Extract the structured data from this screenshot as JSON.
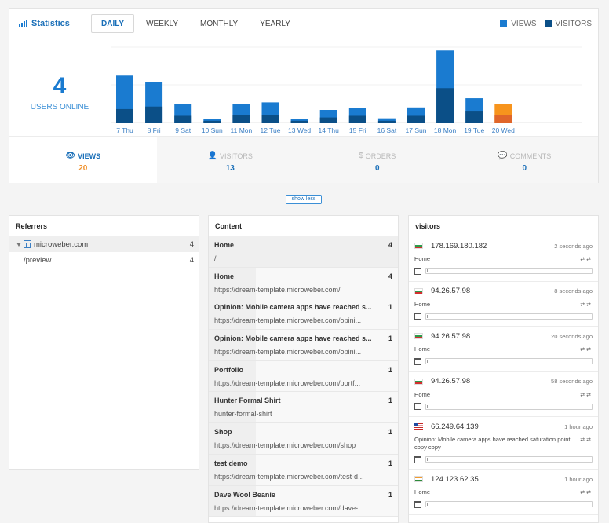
{
  "header": {
    "title": "Statistics",
    "tabs": [
      {
        "label": "DAILY",
        "active": true
      },
      {
        "label": "WEEKLY",
        "active": false
      },
      {
        "label": "MONTHLY",
        "active": false
      },
      {
        "label": "YEARLY",
        "active": false
      }
    ],
    "legend": [
      {
        "label": "VIEWS",
        "color": "#1a7bd0"
      },
      {
        "label": "VISITORS",
        "color": "#0b4f87"
      }
    ]
  },
  "online": {
    "count": "4",
    "label": "USERS ONLINE"
  },
  "chart_data": {
    "type": "bar",
    "categories": [
      "7 Thu",
      "8 Fri",
      "9 Sat",
      "10 Sun",
      "11 Mon",
      "12 Tue",
      "13 Wed",
      "14 Thu",
      "15 Fri",
      "16 Sat",
      "17 Sun",
      "18 Mon",
      "19 Tue",
      "20 Wed"
    ],
    "series": [
      {
        "name": "VIEWS",
        "color": "#1a7bd0",
        "values": [
          56,
          48,
          22,
          4,
          22,
          24,
          4,
          15,
          17,
          5,
          18,
          86,
          29,
          22
        ]
      },
      {
        "name": "VISITORS",
        "color": "#0b4f87",
        "values": [
          16,
          19,
          8,
          2,
          9,
          9,
          2,
          6,
          8,
          2,
          8,
          41,
          14,
          9
        ]
      }
    ],
    "highlight": {
      "category": "20 Wed",
      "views_color": "#f7941d",
      "visitors_color": "#e0662a"
    },
    "ylim": [
      0,
      90
    ],
    "grid": true
  },
  "metrics": [
    {
      "label": "VIEWS",
      "icon": "eye-icon",
      "glyph": "👁",
      "value": "20",
      "active": true
    },
    {
      "label": "VISITORS",
      "icon": "user-icon",
      "glyph": "👤",
      "value": "13",
      "active": false
    },
    {
      "label": "ORDERS",
      "icon": "dollar-icon",
      "glyph": "$",
      "value": "0",
      "active": false
    },
    {
      "label": "COMMENTS",
      "icon": "comment-icon",
      "glyph": "💬",
      "value": "0",
      "active": false
    }
  ],
  "show_less": "show less",
  "referrers": {
    "title": "Referrers",
    "items": [
      {
        "name": "microweber.com",
        "count": "4"
      },
      {
        "name": "/preview",
        "count": "4"
      }
    ]
  },
  "content": {
    "title": "Content",
    "items": [
      {
        "title": "Home",
        "url": "/",
        "count": "4"
      },
      {
        "title": "Home",
        "url": "https://dream-template.microweber.com/",
        "count": "4"
      },
      {
        "title": "Opinion: Mobile camera apps have reached s...",
        "url": "https://dream-template.microweber.com/opini...",
        "count": "1"
      },
      {
        "title": "Opinion: Mobile camera apps have reached s...",
        "url": "https://dream-template.microweber.com/opini...",
        "count": "1"
      },
      {
        "title": "Portfolio",
        "url": "https://dream-template.microweber.com/portf...",
        "count": "1"
      },
      {
        "title": "Hunter Formal Shirt",
        "url": "hunter-formal-shirt",
        "count": "1"
      },
      {
        "title": "Shop",
        "url": "https://dream-template.microweber.com/shop",
        "count": "1"
      },
      {
        "title": "test demo",
        "url": "https://dream-template.microweber.com/test-d...",
        "count": "1"
      },
      {
        "title": "Dave Wool Beanie",
        "url": "https://dream-template.microweber.com/dave-...",
        "count": "1"
      }
    ]
  },
  "visitors": {
    "title": "visitors",
    "items": [
      {
        "flag": "bg",
        "ip": "178.169.180.182",
        "time": "2 seconds ago",
        "page": "Home"
      },
      {
        "flag": "bg",
        "ip": "94.26.57.98",
        "time": "8 seconds ago",
        "page": "Home"
      },
      {
        "flag": "bg",
        "ip": "94.26.57.98",
        "time": "20 seconds ago",
        "page": "Home"
      },
      {
        "flag": "bg",
        "ip": "94.26.57.98",
        "time": "58 seconds ago",
        "page": "Home"
      },
      {
        "flag": "us",
        "ip": "66.249.64.139",
        "time": "1 hour ago",
        "page": "Opinion: Mobile camera apps have reached saturation point copy copy"
      },
      {
        "flag": "in",
        "ip": "124.123.62.35",
        "time": "1 hour ago",
        "page": "Home"
      }
    ]
  }
}
